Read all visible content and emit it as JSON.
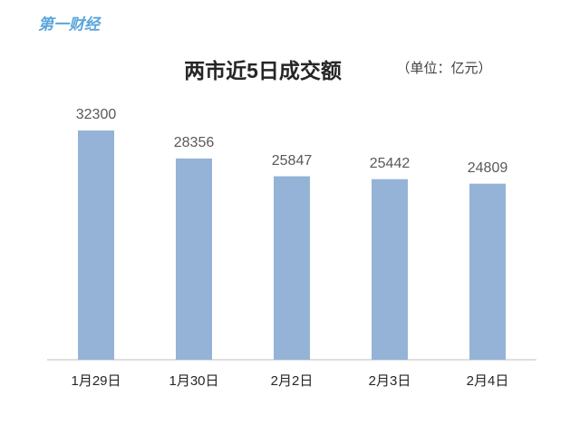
{
  "logo": "第一财经",
  "chart_data": {
    "type": "bar",
    "title": "两市近5日成交额",
    "subtitle": "（单位：亿元）",
    "categories": [
      "1月29日",
      "1月30日",
      "2月2日",
      "2月3日",
      "2月4日"
    ],
    "values": [
      32300,
      28356,
      25847,
      25442,
      24809
    ],
    "color": "#95b3d7"
  }
}
